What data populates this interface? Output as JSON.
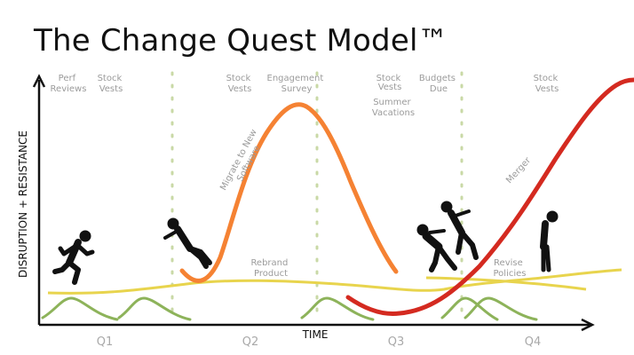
{
  "title": "The Change Quest Model™",
  "axes": {
    "y_label": "DISRUPTION + RESISTANCE",
    "x_label": "TIME"
  },
  "quarters": [
    "Q1",
    "Q2",
    "Q3",
    "Q4"
  ],
  "events": {
    "perf_reviews": [
      "Perf",
      "Reviews"
    ],
    "stock_vests_1": [
      "Stock",
      "Vests"
    ],
    "stock_vests_2": [
      "Stock",
      "Vests"
    ],
    "engagement_survey": [
      "Engagement",
      "Survey"
    ],
    "stock_vests_3": [
      "Stock",
      "Vests"
    ],
    "summer_vacations": [
      "Summer",
      "Vacations"
    ],
    "budgets_due": [
      "Budgets",
      "Due"
    ],
    "stock_vests_4": [
      "Stock",
      "Vests"
    ]
  },
  "curve_labels": {
    "migrate": [
      "Migrate to New",
      "Software"
    ],
    "rebrand": [
      "Rebrand",
      "Product"
    ],
    "merger": "Merger",
    "revise": [
      "Revise",
      "Policies"
    ]
  },
  "colors": {
    "orange_curve": "#f58233",
    "red_curve": "#d42a20",
    "yellow_line": "#e8d44d",
    "green_bumps": "#8db35a",
    "dotted_lines": "#c9d9a6",
    "axis": "#111111",
    "label_gray": "#9b9b9b"
  },
  "icons": [
    "running-person-icon",
    "falling-person-icon",
    "stumbling-people-icon",
    "standing-person-icon"
  ]
}
